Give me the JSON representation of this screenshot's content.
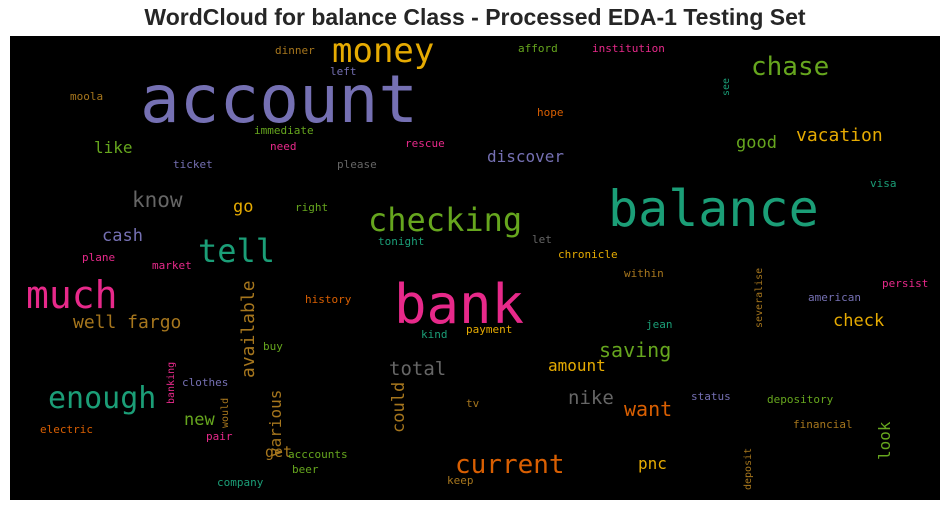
{
  "title": "WordCloud for balance Class - Processed EDA-1 Testing Set",
  "chart_data": {
    "type": "wordcloud",
    "background": "#000000",
    "colormap": "Dark2",
    "words": [
      {
        "text": "account",
        "weight": 1.0,
        "color": "#7570b3"
      },
      {
        "text": "balance",
        "weight": 0.82,
        "color": "#1b9e77"
      },
      {
        "text": "bank",
        "weight": 0.84,
        "color": "#e7298a"
      },
      {
        "text": "much",
        "weight": 0.6,
        "color": "#e7298a"
      },
      {
        "text": "money",
        "weight": 0.5,
        "color": "#e6ab02"
      },
      {
        "text": "checking",
        "weight": 0.48,
        "color": "#66a61e"
      },
      {
        "text": "tell",
        "weight": 0.46,
        "color": "#1b9e77"
      },
      {
        "text": "enough",
        "weight": 0.42,
        "color": "#1b9e77"
      },
      {
        "text": "current",
        "weight": 0.38,
        "color": "#d95f02"
      },
      {
        "text": "chase",
        "weight": 0.36,
        "color": "#66a61e"
      },
      {
        "text": "well fargo",
        "weight": 0.28,
        "color": "#a6761d"
      },
      {
        "text": "saving",
        "weight": 0.28,
        "color": "#66a61e"
      },
      {
        "text": "want",
        "weight": 0.28,
        "color": "#d95f02"
      },
      {
        "text": "know",
        "weight": 0.28,
        "color": "#666666"
      },
      {
        "text": "vacation",
        "weight": 0.26,
        "color": "#e6ab02"
      },
      {
        "text": "nike",
        "weight": 0.26,
        "color": "#666666"
      },
      {
        "text": "total",
        "weight": 0.26,
        "color": "#666666"
      },
      {
        "text": "available",
        "weight": 0.24,
        "color": "#a6761d"
      },
      {
        "text": "could",
        "weight": 0.24,
        "color": "#a6761d"
      },
      {
        "text": "various",
        "weight": 0.24,
        "color": "#a6761d"
      },
      {
        "text": "discover",
        "weight": 0.24,
        "color": "#7570b3"
      },
      {
        "text": "good",
        "weight": 0.24,
        "color": "#66a61e"
      },
      {
        "text": "check",
        "weight": 0.24,
        "color": "#e6ab02"
      },
      {
        "text": "cash",
        "weight": 0.24,
        "color": "#7570b3"
      },
      {
        "text": "amount",
        "weight": 0.24,
        "color": "#e6ab02"
      },
      {
        "text": "look",
        "weight": 0.24,
        "color": "#66a61e"
      },
      {
        "text": "new",
        "weight": 0.24,
        "color": "#66a61e"
      },
      {
        "text": "like",
        "weight": 0.22,
        "color": "#66a61e"
      },
      {
        "text": "go",
        "weight": 0.22,
        "color": "#e6ab02"
      },
      {
        "text": "pnc",
        "weight": 0.22,
        "color": "#e6ab02"
      },
      {
        "text": "get",
        "weight": 0.22,
        "color": "#a6761d"
      },
      {
        "text": "dinner",
        "weight": 0.14,
        "color": "#a6761d"
      },
      {
        "text": "left",
        "weight": 0.14,
        "color": "#7570b3"
      },
      {
        "text": "afford",
        "weight": 0.14,
        "color": "#66a61e"
      },
      {
        "text": "institution",
        "weight": 0.14,
        "color": "#e7298a"
      },
      {
        "text": "moola",
        "weight": 0.14,
        "color": "#a6761d"
      },
      {
        "text": "see",
        "weight": 0.12,
        "color": "#1b9e77"
      },
      {
        "text": "hope",
        "weight": 0.14,
        "color": "#d95f02"
      },
      {
        "text": "immediate",
        "weight": 0.14,
        "color": "#66a61e"
      },
      {
        "text": "need",
        "weight": 0.14,
        "color": "#e7298a"
      },
      {
        "text": "rescue",
        "weight": 0.14,
        "color": "#e7298a"
      },
      {
        "text": "ticket",
        "weight": 0.14,
        "color": "#7570b3"
      },
      {
        "text": "please",
        "weight": 0.14,
        "color": "#666666"
      },
      {
        "text": "visa",
        "weight": 0.14,
        "color": "#1b9e77"
      },
      {
        "text": "right",
        "weight": 0.14,
        "color": "#66a61e"
      },
      {
        "text": "tonight",
        "weight": 0.14,
        "color": "#1b9e77"
      },
      {
        "text": "let",
        "weight": 0.14,
        "color": "#666666"
      },
      {
        "text": "plane",
        "weight": 0.14,
        "color": "#e7298a"
      },
      {
        "text": "market",
        "weight": 0.14,
        "color": "#e7298a"
      },
      {
        "text": "chronicle",
        "weight": 0.14,
        "color": "#e6ab02"
      },
      {
        "text": "within",
        "weight": 0.14,
        "color": "#a6761d"
      },
      {
        "text": "severalise",
        "weight": 0.12,
        "color": "#a6761d"
      },
      {
        "text": "persist",
        "weight": 0.14,
        "color": "#e7298a"
      },
      {
        "text": "history",
        "weight": 0.14,
        "color": "#d95f02"
      },
      {
        "text": "american",
        "weight": 0.14,
        "color": "#7570b3"
      },
      {
        "text": "kind",
        "weight": 0.14,
        "color": "#1b9e77"
      },
      {
        "text": "payment",
        "weight": 0.14,
        "color": "#e6ab02"
      },
      {
        "text": "jean",
        "weight": 0.14,
        "color": "#1b9e77"
      },
      {
        "text": "buy",
        "weight": 0.14,
        "color": "#66a61e"
      },
      {
        "text": "banking",
        "weight": 0.12,
        "color": "#e7298a"
      },
      {
        "text": "clothes",
        "weight": 0.14,
        "color": "#7570b3"
      },
      {
        "text": "would",
        "weight": 0.12,
        "color": "#a6761d"
      },
      {
        "text": "status",
        "weight": 0.14,
        "color": "#7570b3"
      },
      {
        "text": "depository",
        "weight": 0.14,
        "color": "#66a61e"
      },
      {
        "text": "tv",
        "weight": 0.14,
        "color": "#a6761d"
      },
      {
        "text": "electric",
        "weight": 0.14,
        "color": "#d95f02"
      },
      {
        "text": "pair",
        "weight": 0.14,
        "color": "#e7298a"
      },
      {
        "text": "financial",
        "weight": 0.14,
        "color": "#a6761d"
      },
      {
        "text": "deposit",
        "weight": 0.12,
        "color": "#a6761d"
      },
      {
        "text": "acccounts",
        "weight": 0.14,
        "color": "#66a61e"
      },
      {
        "text": "beer",
        "weight": 0.14,
        "color": "#66a61e"
      },
      {
        "text": "company",
        "weight": 0.14,
        "color": "#1b9e77"
      },
      {
        "text": "keep",
        "weight": 0.14,
        "color": "#a6761d"
      }
    ]
  }
}
